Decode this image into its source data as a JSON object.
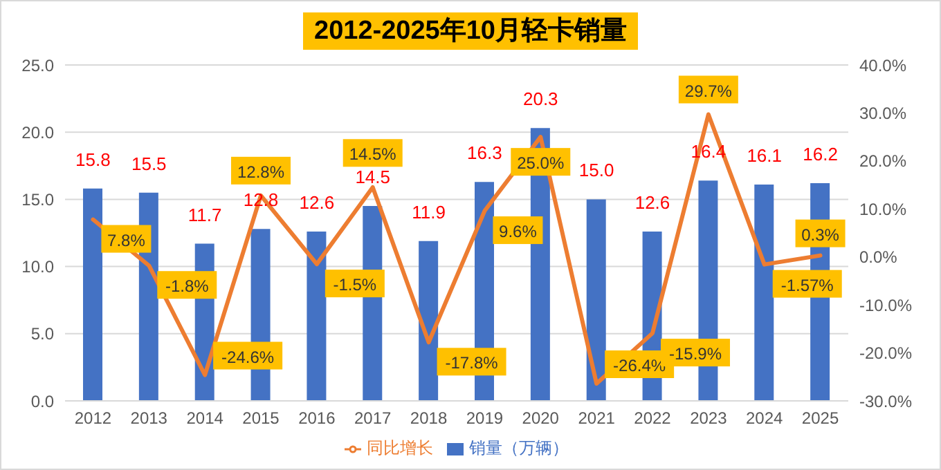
{
  "chart_data": {
    "type": "bar",
    "title": "2012-2025年10月轻卡销量",
    "categories": [
      "2012",
      "2013",
      "2014",
      "2015",
      "2016",
      "2017",
      "2018",
      "2019",
      "2020",
      "2021",
      "2022",
      "2023",
      "2024",
      "2025"
    ],
    "series": [
      {
        "name": "销量（万辆）",
        "color": "#4472c4",
        "values": [
          15.8,
          15.5,
          11.7,
          12.8,
          12.6,
          14.5,
          11.9,
          16.3,
          20.3,
          15.0,
          12.6,
          16.4,
          16.1,
          16.2
        ],
        "value_labels": [
          "15.8",
          "15.5",
          "11.7",
          "12.8",
          "12.6",
          "14.5",
          "11.9",
          "16.3",
          "20.3",
          "15.0",
          "12.6",
          "16.4",
          "16.1",
          "16.2"
        ]
      },
      {
        "name": "同比增长",
        "type": "line",
        "axis": "y2",
        "color": "#ed7d31",
        "values": [
          7.8,
          -1.8,
          -24.6,
          12.8,
          -1.5,
          14.5,
          -17.8,
          9.6,
          25.0,
          -26.4,
          -15.9,
          29.7,
          -1.57,
          0.3
        ],
        "value_labels": [
          "7.8%",
          "-1.8%",
          "-24.6%",
          "12.8%",
          "-1.5%",
          "14.5%",
          "-17.8%",
          "9.6%",
          "25.0%",
          "-26.4%",
          "-15.9%",
          "29.7%",
          "-1.57%",
          "0.3%"
        ]
      }
    ],
    "ylim": [
      0,
      25
    ],
    "yticks": [
      {
        "value": 0,
        "label": "0.0"
      },
      {
        "value": 5,
        "label": "5.0"
      },
      {
        "value": 10,
        "label": "10.0"
      },
      {
        "value": 15,
        "label": "15.0"
      },
      {
        "value": 20,
        "label": "20.0"
      },
      {
        "value": 25,
        "label": "25.0"
      }
    ],
    "y2lim": [
      -30,
      40
    ],
    "y2ticks": [
      {
        "value": -30,
        "label": "-30.0%"
      },
      {
        "value": -20,
        "label": "-20.0%"
      },
      {
        "value": -10,
        "label": "-10.0%"
      },
      {
        "value": 0,
        "label": "0.0%"
      },
      {
        "value": 10,
        "label": "10.0%"
      },
      {
        "value": 20,
        "label": "20.0%"
      },
      {
        "value": 30,
        "label": "30.0%"
      },
      {
        "value": 40,
        "label": "40.0%"
      }
    ],
    "grid": "y",
    "legend": "bottom",
    "marker": "none",
    "line_style": "solid"
  }
}
